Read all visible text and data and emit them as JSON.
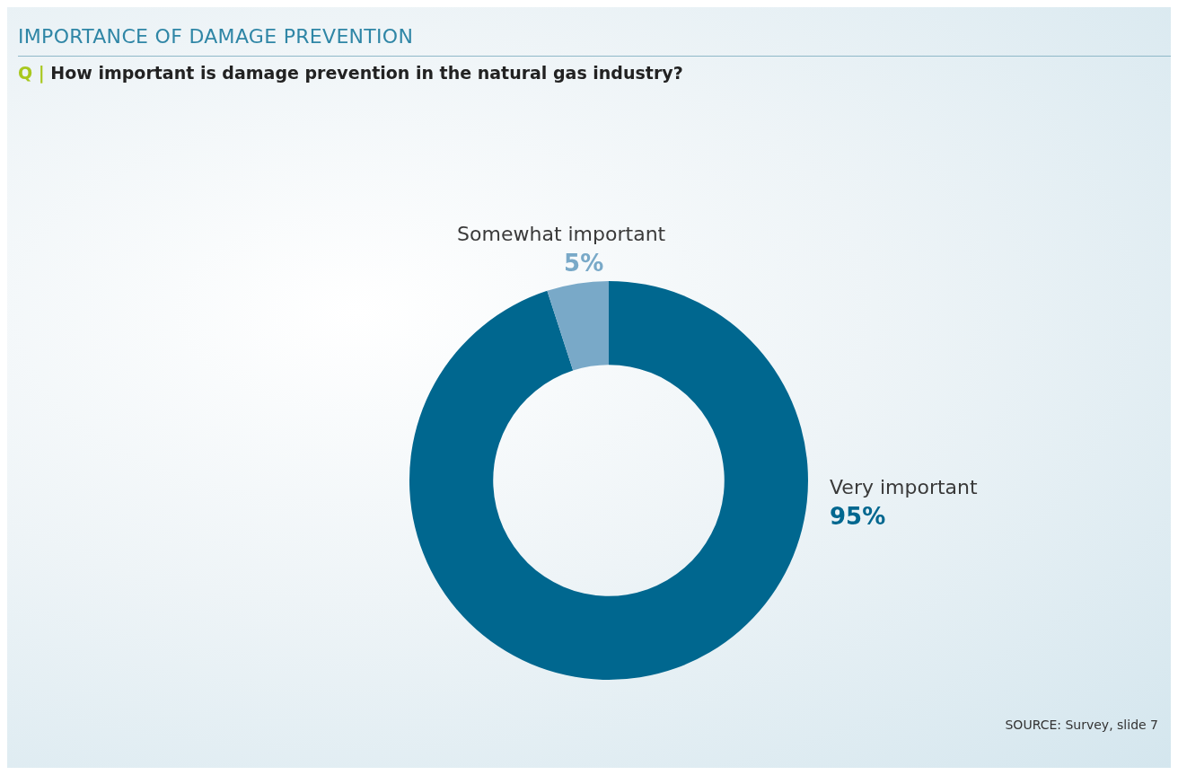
{
  "chart_data": {
    "type": "donut",
    "title": "IMPORTANCE OF DAMAGE PREVENTION",
    "subtitle": "Q | How important is damage prevention in the natural gas industry?",
    "categories": [
      "Very important",
      "Somewhat important"
    ],
    "values": [
      95,
      5
    ],
    "colors": [
      "#00678f",
      "#79a9c8"
    ],
    "value_labels": [
      "95%",
      "5%"
    ],
    "legend": false,
    "annotations": [
      "SOURCE: Survey, slide 7"
    ]
  }
}
